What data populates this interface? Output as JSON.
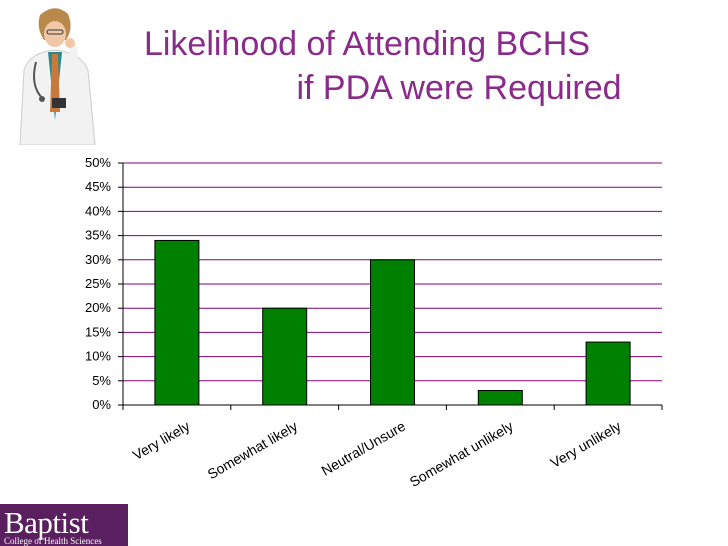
{
  "slide": {
    "title_line_1": "Likelihood of Attending BCHS",
    "title_line_2": "if PDA were Required"
  },
  "logo": {
    "name": "Baptist",
    "subtitle": "College of Health Sciences"
  },
  "colors": {
    "title": "#8a2a8a",
    "bar_fill": "#008000",
    "bar_stroke": "#000000",
    "gridline": "#800080",
    "logo_bg": "#5a1f5f"
  },
  "chart_data": {
    "type": "bar",
    "categories": [
      "Very likely",
      "Somewhat likely",
      "Neutral/Unsure",
      "Somewhat unlikely",
      "Very unlikely"
    ],
    "values": [
      34,
      20,
      30,
      3,
      13
    ],
    "ylim": [
      0,
      50
    ],
    "yticks": [
      "0%",
      "5%",
      "10%",
      "15%",
      "20%",
      "25%",
      "30%",
      "35%",
      "40%",
      "45%",
      "50%"
    ],
    "ytick_values": [
      0,
      5,
      10,
      15,
      20,
      25,
      30,
      35,
      40,
      45,
      50
    ],
    "grid": true,
    "legend": "none",
    "title": "",
    "xlabel": "",
    "ylabel": ""
  }
}
